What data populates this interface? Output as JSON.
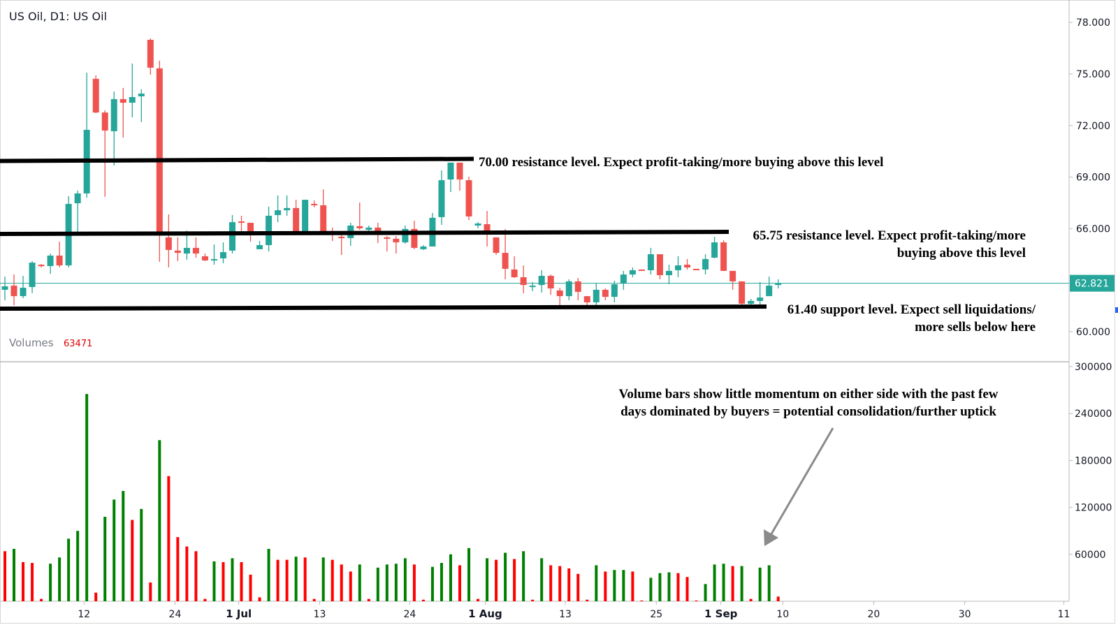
{
  "header": {
    "title": "US Oil, D1: US Oil"
  },
  "volumes_legend": {
    "label": "Volumes",
    "value": "63471"
  },
  "colors": {
    "up": "#26a69a",
    "down": "#ef5350",
    "vol_up": "#008000",
    "vol_down": "#ff0000",
    "last_price": "#26a69a"
  },
  "last_price": {
    "value": 62.821,
    "label": "62.821"
  },
  "annotations": {
    "resistance_70": {
      "level": 70.0,
      "lines": [
        "70.00 resistance level. Expect profit-taking/more buying above this level"
      ]
    },
    "resistance_6575": {
      "level": 65.75,
      "lines": [
        "65.75 resistance level. Expect profit-taking/more",
        "buying above this level"
      ]
    },
    "support_6140": {
      "level": 61.4,
      "lines": [
        "61.40 support level. Expect sell liquidations/",
        "more sells below here"
      ]
    },
    "volume_note": {
      "lines": [
        "Volume bars show little momentum on either side with the past few",
        "days dominated by buyers = potential consolidation/further uptick"
      ]
    }
  },
  "chart_data": {
    "type": "candlestick",
    "title": "US Oil, D1: US Oil",
    "price_axis": {
      "ticks": [
        78,
        75,
        72,
        69,
        66,
        60
      ],
      "tick_labels": [
        "78.000",
        "75.000",
        "72.000",
        "69.000",
        "66.000",
        "60.000"
      ],
      "range": [
        60,
        78
      ]
    },
    "volume_axis": {
      "ticks": [
        300000,
        240000,
        180000,
        120000,
        60000
      ],
      "tick_labels": [
        "300000",
        "240000",
        "180000",
        "120000",
        "60000"
      ],
      "range": [
        0,
        300000
      ]
    },
    "x_axis": {
      "tick_labels": [
        "12",
        "24",
        "1 Jul",
        "13",
        "24",
        "1 Aug",
        "13",
        "25",
        "1 Sep",
        "10",
        "20",
        "30",
        "11"
      ],
      "tick_bar_index": [
        8.7,
        18.7,
        25.7,
        34.6,
        44.5,
        52.8,
        61.6,
        71.6,
        78.7,
        85.5,
        95.5,
        105.5,
        116.4
      ],
      "bold": [
        false,
        false,
        true,
        false,
        false,
        true,
        false,
        false,
        true,
        false,
        false,
        false,
        false
      ]
    },
    "ohlc": [
      [
        62.44,
        63.21,
        61.83,
        62.64
      ],
      [
        62.68,
        63.33,
        61.54,
        62.07
      ],
      [
        62.07,
        63.25,
        61.95,
        62.56
      ],
      [
        62.6,
        64.11,
        62.24,
        64.02
      ],
      [
        63.9,
        63.94,
        63.74,
        63.82
      ],
      [
        63.82,
        64.55,
        63.37,
        64.43
      ],
      [
        64.43,
        65.24,
        63.74,
        63.86
      ],
      [
        63.86,
        67.89,
        63.74,
        67.44
      ],
      [
        67.48,
        68.21,
        65.69,
        68.05
      ],
      [
        68.05,
        75.08,
        67.8,
        71.75
      ],
      [
        74.72,
        74.92,
        72.72,
        72.76
      ],
      [
        72.76,
        72.89,
        67.85,
        71.71
      ],
      [
        71.67,
        73.98,
        69.67,
        73.54
      ],
      [
        73.54,
        74.19,
        71.3,
        73.33
      ],
      [
        73.33,
        75.61,
        72.48,
        73.66
      ],
      [
        73.7,
        74.11,
        72.2,
        73.86
      ],
      [
        76.99,
        77.07,
        74.96,
        75.37
      ],
      [
        75.33,
        75.77,
        64.07,
        65.69
      ],
      [
        65.49,
        66.83,
        63.74,
        64.76
      ],
      [
        64.72,
        65.49,
        64.11,
        64.59
      ],
      [
        64.55,
        65.89,
        64.19,
        64.88
      ],
      [
        64.88,
        65.49,
        64.31,
        64.55
      ],
      [
        64.39,
        64.55,
        64.11,
        64.15
      ],
      [
        64.15,
        65.08,
        63.9,
        64.23
      ],
      [
        64.27,
        65.2,
        63.98,
        64.63
      ],
      [
        64.72,
        66.79,
        64.55,
        66.38
      ],
      [
        66.42,
        66.75,
        65.81,
        66.34
      ],
      [
        66.34,
        66.34,
        65.24,
        65.77
      ],
      [
        64.8,
        65.28,
        64.8,
        65.04
      ],
      [
        65.04,
        67.28,
        64.67,
        66.75
      ],
      [
        66.79,
        67.93,
        66.38,
        67.07
      ],
      [
        67.07,
        67.93,
        66.75,
        67.2
      ],
      [
        67.2,
        67.68,
        65.85,
        65.85
      ],
      [
        65.85,
        67.68,
        65.77,
        67.68
      ],
      [
        67.44,
        67.64,
        67.24,
        67.36
      ],
      [
        67.36,
        68.29,
        65.85,
        65.85
      ],
      [
        65.85,
        66.06,
        65.28,
        65.77
      ],
      [
        65.53,
        65.77,
        64.47,
        65.45
      ],
      [
        65.45,
        66.34,
        65.0,
        66.18
      ],
      [
        66.14,
        67.52,
        65.93,
        66.02
      ],
      [
        65.93,
        66.18,
        65.85,
        66.06
      ],
      [
        66.06,
        66.34,
        65.16,
        65.77
      ],
      [
        65.49,
        65.57,
        64.67,
        65.45
      ],
      [
        65.41,
        65.57,
        64.55,
        65.2
      ],
      [
        65.2,
        66.18,
        65.12,
        65.98
      ],
      [
        65.98,
        66.46,
        64.8,
        64.88
      ],
      [
        64.8,
        65.04,
        64.76,
        64.96
      ],
      [
        64.96,
        66.91,
        64.96,
        66.63
      ],
      [
        66.67,
        69.39,
        66.22,
        68.82
      ],
      [
        68.86,
        69.84,
        68.13,
        69.84
      ],
      [
        69.84,
        69.84,
        68.21,
        68.86
      ],
      [
        68.82,
        69.02,
        66.5,
        66.71
      ],
      [
        66.18,
        66.38,
        66.02,
        66.3
      ],
      [
        66.26,
        67.03,
        64.96,
        65.77
      ],
      [
        65.49,
        65.49,
        64.47,
        64.59
      ],
      [
        64.59,
        65.98,
        63.05,
        63.66
      ],
      [
        63.62,
        64.39,
        63.13,
        63.17
      ],
      [
        63.17,
        63.86,
        62.24,
        62.72
      ],
      [
        62.64,
        62.89,
        62.36,
        62.68
      ],
      [
        62.72,
        63.58,
        62.28,
        63.25
      ],
      [
        63.25,
        63.33,
        62.15,
        62.52
      ],
      [
        62.4,
        62.56,
        61.54,
        62.07
      ],
      [
        62.07,
        63.05,
        61.83,
        62.93
      ],
      [
        62.93,
        63.13,
        61.83,
        62.32
      ],
      [
        62.07,
        62.07,
        61.42,
        61.71
      ],
      [
        61.71,
        62.85,
        61.42,
        62.44
      ],
      [
        62.44,
        62.52,
        61.83,
        62.03
      ],
      [
        62.03,
        62.97,
        61.71,
        62.76
      ],
      [
        62.8,
        63.54,
        62.44,
        63.33
      ],
      [
        63.33,
        63.74,
        63.17,
        63.58
      ],
      [
        63.62,
        63.62,
        63.58,
        63.58
      ],
      [
        63.58,
        64.88,
        63.33,
        64.51
      ],
      [
        64.51,
        64.51,
        63.05,
        63.29
      ],
      [
        63.29,
        63.9,
        62.76,
        63.54
      ],
      [
        63.58,
        64.39,
        63.17,
        63.86
      ],
      [
        63.9,
        64.23,
        63.62,
        63.74
      ],
      [
        63.66,
        63.66,
        63.62,
        63.62
      ],
      [
        63.62,
        64.51,
        63.33,
        64.23
      ],
      [
        64.31,
        65.53,
        64.27,
        65.2
      ],
      [
        65.2,
        65.33,
        63.54,
        63.54
      ],
      [
        63.54,
        63.54,
        62.44,
        62.93
      ],
      [
        62.93,
        62.93,
        61.42,
        61.63
      ],
      [
        61.63,
        61.91,
        61.42,
        61.79
      ],
      [
        61.79,
        62.89,
        61.54,
        61.99
      ],
      [
        62.07,
        63.21,
        62.07,
        62.68
      ],
      [
        62.72,
        63.05,
        62.52,
        62.821
      ]
    ],
    "volume": [
      64000,
      67000,
      50000,
      49000,
      3000,
      48000,
      56000,
      80000,
      90000,
      265000,
      11000,
      108000,
      130000,
      141000,
      104000,
      118000,
      24000,
      206000,
      160000,
      82000,
      70000,
      64000,
      3000,
      51000,
      50000,
      55000,
      50000,
      34000,
      5000,
      67000,
      53000,
      53000,
      57000,
      56000,
      3000,
      56000,
      53000,
      47000,
      38000,
      47000,
      3000,
      43000,
      47000,
      48000,
      55000,
      47000,
      2000,
      44000,
      49000,
      60000,
      46000,
      68000,
      3000,
      55000,
      53000,
      62000,
      54000,
      64000,
      2000,
      55000,
      46000,
      45000,
      42000,
      35000,
      2000,
      46000,
      38000,
      40000,
      40000,
      38000,
      1000,
      30000,
      36000,
      37000,
      36000,
      31000,
      1000,
      22000,
      47000,
      48000,
      45000,
      45000,
      3000,
      43000,
      46000,
      6000
    ],
    "volume_dir": [
      "d",
      "u",
      "d",
      "d",
      "d",
      "u",
      "u",
      "u",
      "u",
      "u",
      "d",
      "u",
      "u",
      "u",
      "d",
      "u",
      "d",
      "u",
      "d",
      "d",
      "d",
      "d",
      "d",
      "u",
      "d",
      "u",
      "d",
      "d",
      "d",
      "u",
      "d",
      "d",
      "u",
      "d",
      "d",
      "u",
      "d",
      "d",
      "d",
      "u",
      "d",
      "u",
      "u",
      "u",
      "u",
      "d",
      "d",
      "u",
      "u",
      "u",
      "d",
      "u",
      "d",
      "u",
      "d",
      "u",
      "d",
      "u",
      "d",
      "u",
      "d",
      "d",
      "d",
      "d",
      "d",
      "u",
      "d",
      "u",
      "u",
      "d",
      "d",
      "u",
      "u",
      "u",
      "d",
      "d",
      "d",
      "u",
      "u",
      "u",
      "d",
      "u",
      "d",
      "u",
      "u",
      "d"
    ]
  }
}
